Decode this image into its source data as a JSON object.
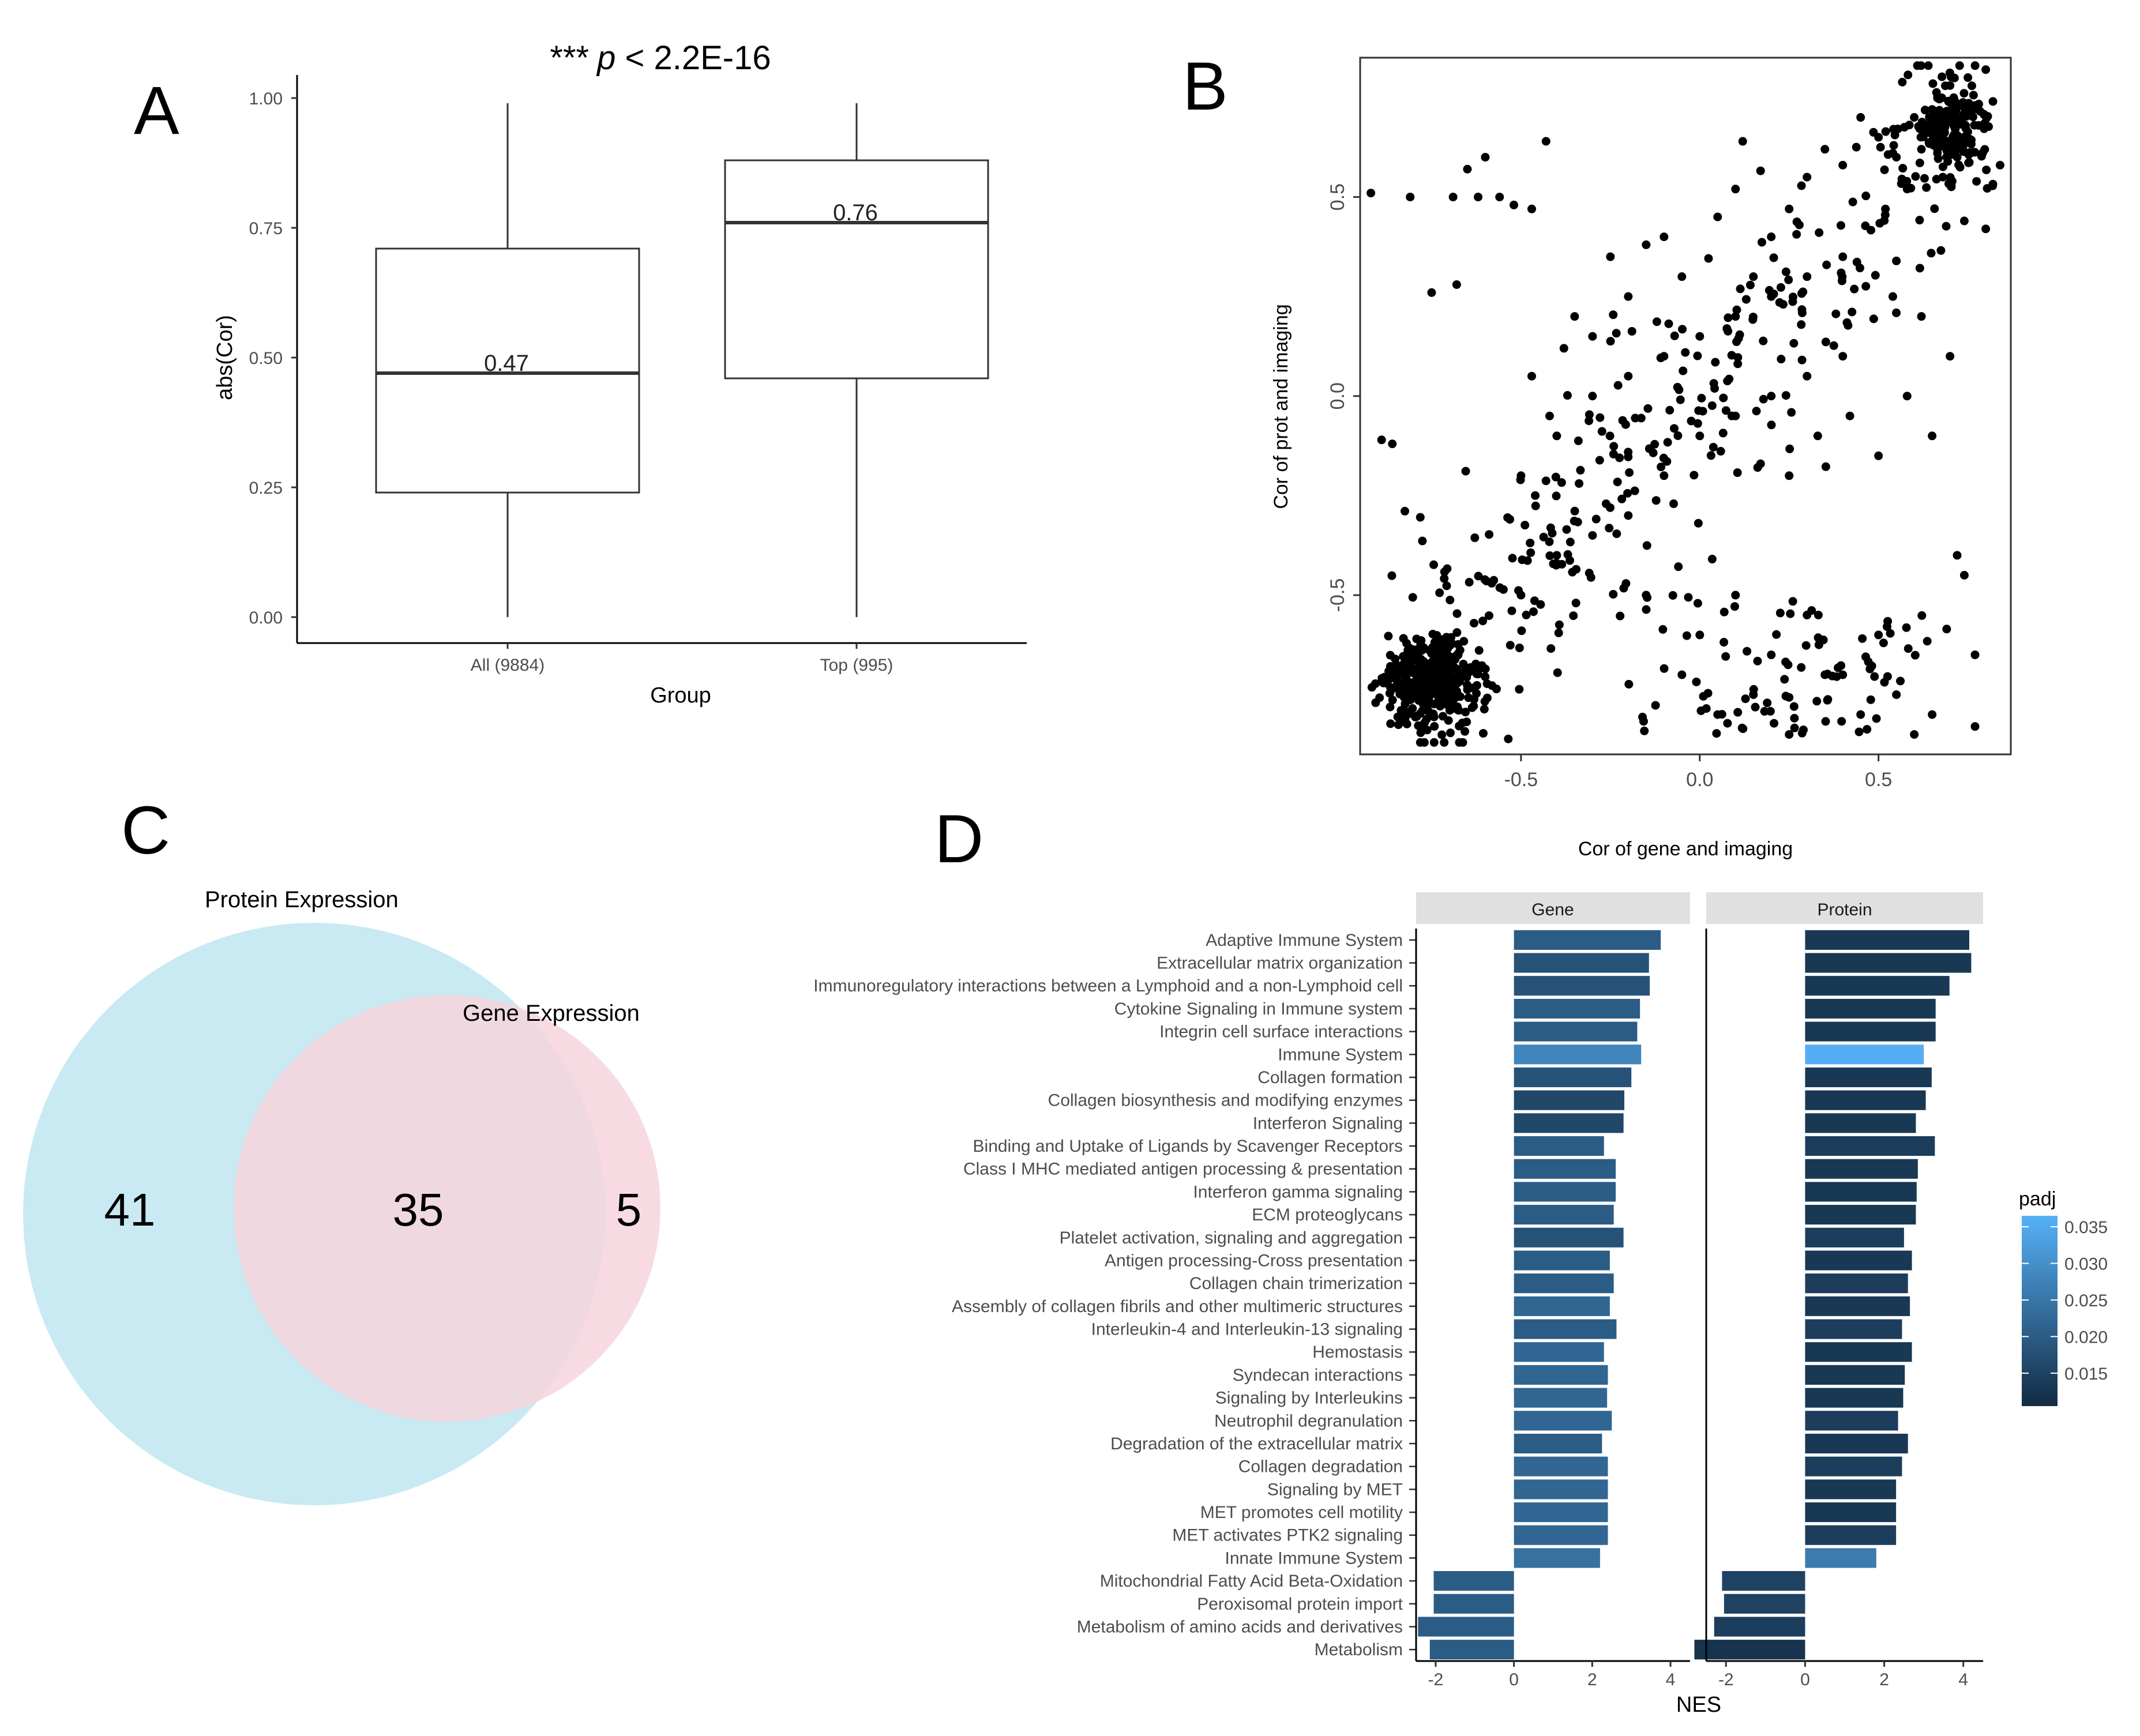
{
  "panel_labels": [
    "A",
    "B",
    "C",
    "D"
  ],
  "chart_data": [
    {
      "panel": "A",
      "type": "boxplot",
      "annotation": {
        "stars": "***",
        "p": "p",
        "rest": " < 2.2E-16"
      },
      "xlabel": "Group",
      "ylabel": "abs(Cor)",
      "ylim": [
        0,
        1
      ],
      "yticks": [
        "0.00",
        "0.25",
        "0.50",
        "0.75",
        "1.00"
      ],
      "yticks_values": [
        0,
        0.25,
        0.5,
        0.75,
        1
      ],
      "groups": [
        {
          "label": "All (9884)",
          "min": 0.0,
          "q1": 0.24,
          "median": 0.47,
          "q3": 0.71,
          "max": 0.99,
          "median_label": "0.47"
        },
        {
          "label": "Top (995)",
          "min": 0.0,
          "q1": 0.46,
          "median": 0.76,
          "q3": 0.88,
          "max": 0.99,
          "median_label": "0.76"
        }
      ]
    },
    {
      "panel": "B",
      "type": "scatter",
      "xlabel": "Cor of gene and imaging",
      "ylabel": "Cor of prot and imaging",
      "xlim": [
        -0.95,
        0.87
      ],
      "ylim": [
        -0.9,
        0.85
      ],
      "xticks": [
        "-0.5",
        "0.0",
        "0.5"
      ],
      "xticks_values": [
        -0.5,
        0,
        0.5
      ],
      "yticks": [
        "-0.5",
        "0.0",
        "0.5"
      ],
      "yticks_values": [
        -0.5,
        0,
        0.5
      ],
      "points_sample": [
        [
          -0.92,
          0.51
        ],
        [
          -0.81,
          0.5
        ],
        [
          -0.69,
          0.5
        ],
        [
          -0.62,
          0.5
        ],
        [
          -0.56,
          0.5
        ],
        [
          -0.52,
          0.48
        ],
        [
          -0.47,
          0.47
        ],
        [
          -0.43,
          0.64
        ],
        [
          -0.6,
          0.6
        ],
        [
          -0.65,
          0.57
        ],
        [
          -0.75,
          0.26
        ],
        [
          -0.68,
          0.28
        ],
        [
          -0.89,
          -0.11
        ],
        [
          -0.86,
          -0.12
        ],
        [
          -0.47,
          0.05
        ],
        [
          -0.42,
          -0.05
        ],
        [
          -0.38,
          0.12
        ],
        [
          -0.35,
          0.2
        ],
        [
          -0.3,
          0.15
        ],
        [
          -0.25,
          0.35
        ],
        [
          -0.2,
          0.25
        ],
        [
          -0.15,
          0.38
        ],
        [
          -0.1,
          0.4
        ],
        [
          -0.05,
          0.3
        ],
        [
          0.05,
          0.45
        ],
        [
          0.1,
          0.52
        ],
        [
          0.15,
          0.3
        ],
        [
          0.2,
          0.4
        ],
        [
          0.25,
          0.47
        ],
        [
          0.3,
          0.55
        ],
        [
          0.35,
          0.62
        ],
        [
          0.4,
          0.58
        ],
        [
          0.45,
          0.7
        ],
        [
          0.5,
          0.65
        ],
        [
          0.55,
          0.6
        ],
        [
          0.6,
          0.7
        ],
        [
          0.65,
          0.72
        ],
        [
          0.7,
          0.78
        ],
        [
          0.75,
          0.8
        ],
        [
          0.8,
          0.82
        ],
        [
          0.72,
          0.6
        ],
        [
          0.78,
          0.68
        ],
        [
          0.82,
          0.74
        ],
        [
          0.68,
          0.55
        ],
        [
          0.62,
          0.62
        ],
        [
          0.58,
          0.52
        ],
        [
          0.74,
          0.44
        ],
        [
          0.8,
          0.42
        ],
        [
          0.84,
          0.58
        ],
        [
          0.77,
          0.73
        ],
        [
          -0.5,
          -0.5
        ],
        [
          -0.4,
          -0.4
        ],
        [
          -0.3,
          -0.35
        ],
        [
          -0.2,
          -0.3
        ],
        [
          -0.1,
          -0.2
        ],
        [
          0.0,
          -0.1
        ],
        [
          0.1,
          -0.05
        ],
        [
          0.2,
          0.0
        ],
        [
          0.3,
          0.05
        ],
        [
          0.4,
          0.1
        ],
        [
          -0.5,
          -0.2
        ],
        [
          -0.4,
          -0.1
        ],
        [
          -0.3,
          0.0
        ],
        [
          -0.2,
          0.05
        ],
        [
          -0.1,
          0.1
        ],
        [
          0.0,
          0.15
        ],
        [
          0.1,
          0.2
        ],
        [
          0.2,
          0.25
        ],
        [
          0.3,
          0.3
        ],
        [
          0.4,
          0.35
        ],
        [
          0.0,
          -0.6
        ],
        [
          0.1,
          -0.5
        ],
        [
          0.2,
          -0.65
        ],
        [
          0.3,
          -0.55
        ],
        [
          0.4,
          -0.7
        ],
        [
          0.5,
          -0.6
        ],
        [
          0.55,
          -0.75
        ],
        [
          0.65,
          -0.8
        ],
        [
          0.72,
          -0.4
        ],
        [
          0.74,
          -0.45
        ],
        [
          0.77,
          -0.65
        ],
        [
          0.77,
          -0.83
        ],
        [
          -0.15,
          -0.5
        ],
        [
          -0.05,
          -0.7
        ],
        [
          0.05,
          -0.8
        ],
        [
          0.15,
          -0.75
        ],
        [
          0.25,
          -0.85
        ],
        [
          0.35,
          -0.7
        ],
        [
          0.45,
          -0.8
        ],
        [
          0.6,
          -0.85
        ],
        [
          0.17,
          -0.17
        ],
        [
          0.25,
          -0.2
        ],
        [
          0.33,
          -0.1
        ],
        [
          0.42,
          -0.05
        ],
        [
          0.5,
          -0.15
        ],
        [
          0.58,
          0.0
        ],
        [
          0.65,
          -0.1
        ],
        [
          0.7,
          0.1
        ],
        [
          0.62,
          0.2
        ],
        [
          0.54,
          0.25
        ]
      ],
      "cluster_note_values": {
        "dense_center": [
          -0.75,
          -0.72
        ]
      }
    },
    {
      "panel": "C",
      "type": "venn",
      "sets": [
        {
          "name": "Protein Expression",
          "color": "#c6e9f2"
        },
        {
          "name": "Gene Expression",
          "color": "#f7d5dd"
        }
      ],
      "counts": {
        "protein_only": "41",
        "both": "35",
        "gene_only": "5"
      }
    },
    {
      "panel": "D",
      "type": "bar",
      "orientation": "horizontal",
      "facets": [
        "Gene",
        "Protein"
      ],
      "xlabel": "NES",
      "xlim": [
        -2.5,
        4.5
      ],
      "xticks": [
        "-2",
        "0",
        "2",
        "4"
      ],
      "xticks_values": [
        -2,
        0,
        2,
        4
      ],
      "legend": {
        "title": "padj",
        "ticks": [
          "0.035",
          "0.030",
          "0.025",
          "0.020",
          "0.015"
        ],
        "tick_values": [
          0.035,
          0.03,
          0.025,
          0.02,
          0.015
        ],
        "range": [
          0.0105,
          0.0365
        ],
        "position": "right"
      },
      "categories": [
        "Adaptive Immune System",
        "Extracellular matrix organization",
        "Immunoregulatory interactions between a Lymphoid and a non-Lymphoid cell",
        "Cytokine Signaling in Immune system",
        "Integrin cell surface interactions",
        "Immune System",
        "Collagen formation",
        "Collagen biosynthesis and modifying enzymes",
        "Interferon Signaling",
        "Binding and Uptake of Ligands by Scavenger Receptors",
        "Class I MHC mediated antigen processing & presentation",
        "Interferon gamma signaling",
        "ECM proteoglycans",
        "Platelet activation, signaling and aggregation",
        "Antigen processing-Cross presentation",
        "Collagen chain trimerization",
        "Assembly of collagen fibrils and other multimeric structures",
        "Interleukin-4 and Interleukin-13 signaling",
        "Hemostasis",
        "Syndecan interactions",
        "Signaling by Interleukins",
        "Neutrophil degranulation",
        "Degradation of the extracellular matrix",
        "Collagen degradation",
        "Signaling by MET",
        "MET promotes cell motility",
        "MET activates PTK2 signaling",
        "Innate Immune System",
        "Mitochondrial Fatty Acid Beta-Oxidation",
        "Peroxisomal protein import",
        "Metabolism of amino acids and derivatives",
        "Metabolism"
      ],
      "series": [
        {
          "name": "Gene",
          "values": [
            3.75,
            3.45,
            3.47,
            3.22,
            3.15,
            3.25,
            3.0,
            2.82,
            2.8,
            2.3,
            2.6,
            2.6,
            2.55,
            2.8,
            2.45,
            2.55,
            2.45,
            2.62,
            2.3,
            2.4,
            2.38,
            2.5,
            2.25,
            2.4,
            2.4,
            2.4,
            2.4,
            2.2,
            -2.05,
            -2.05,
            -2.45,
            -2.15
          ],
          "padj": [
            0.02,
            0.018,
            0.018,
            0.02,
            0.02,
            0.028,
            0.018,
            0.016,
            0.016,
            0.02,
            0.02,
            0.02,
            0.02,
            0.018,
            0.02,
            0.02,
            0.022,
            0.02,
            0.022,
            0.022,
            0.022,
            0.022,
            0.02,
            0.022,
            0.022,
            0.022,
            0.022,
            0.024,
            0.02,
            0.02,
            0.02,
            0.02
          ]
        },
        {
          "name": "Protein",
          "values": [
            4.15,
            4.2,
            3.65,
            3.3,
            3.3,
            3.0,
            3.2,
            3.05,
            2.8,
            3.28,
            2.85,
            2.82,
            2.8,
            2.5,
            2.7,
            2.6,
            2.65,
            2.45,
            2.7,
            2.52,
            2.48,
            2.35,
            2.6,
            2.45,
            2.3,
            2.3,
            2.3,
            1.8,
            -2.1,
            -2.05,
            -2.3,
            -2.8
          ],
          "padj": [
            0.013,
            0.013,
            0.013,
            0.013,
            0.013,
            0.036,
            0.013,
            0.013,
            0.013,
            0.014,
            0.013,
            0.013,
            0.013,
            0.014,
            0.013,
            0.014,
            0.013,
            0.014,
            0.013,
            0.013,
            0.013,
            0.014,
            0.013,
            0.014,
            0.013,
            0.013,
            0.014,
            0.026,
            0.015,
            0.015,
            0.014,
            0.012
          ]
        }
      ]
    }
  ]
}
